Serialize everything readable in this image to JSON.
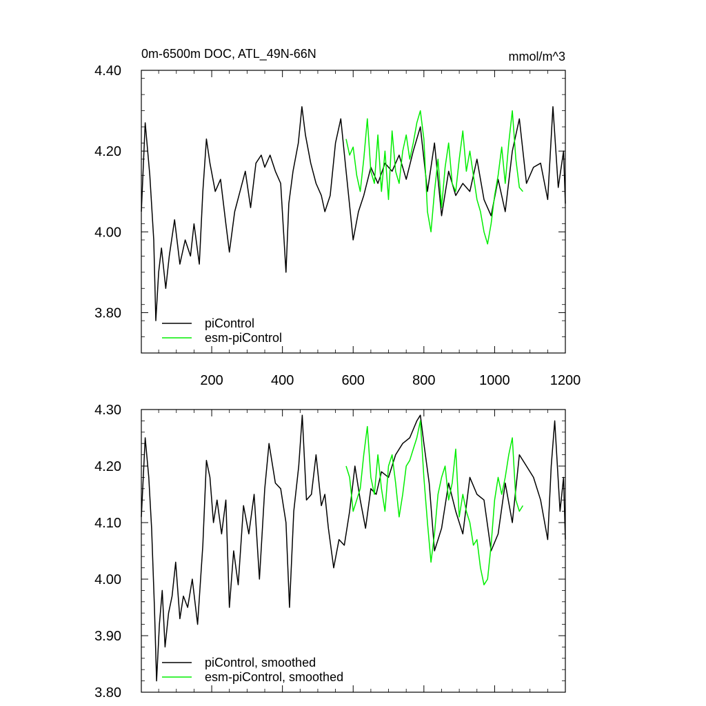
{
  "chart_data": [
    {
      "type": "line",
      "title": "0m-6500m DOC, ATL_49N-66N",
      "units": "mmol/m^3",
      "xlim": [
        1,
        1200
      ],
      "ylim": [
        3.7,
        4.4
      ],
      "x_ticks": [
        200,
        400,
        600,
        800,
        1000,
        1200
      ],
      "x_tick_labels": [
        "200",
        "400",
        "600",
        "800",
        "1000",
        "1200"
      ],
      "y_ticks": [
        3.8,
        4.0,
        4.2,
        4.4
      ],
      "y_tick_labels": [
        "3.80",
        "4.00",
        "4.20",
        "4.40"
      ],
      "legend_position": "bottom-left",
      "series": [
        {
          "name": "piControl",
          "color": "#000000",
          "x": [
            1,
            12,
            25,
            36,
            42,
            50,
            58,
            70,
            80,
            95,
            110,
            125,
            140,
            150,
            165,
            175,
            185,
            195,
            210,
            225,
            240,
            250,
            265,
            280,
            295,
            310,
            325,
            340,
            350,
            365,
            380,
            395,
            410,
            418,
            430,
            445,
            455,
            465,
            480,
            495,
            510,
            520,
            535,
            550,
            565,
            580,
            600,
            615,
            630,
            650,
            670,
            690,
            710,
            730,
            750,
            770,
            790,
            810,
            830,
            850,
            870,
            890,
            910,
            930,
            950,
            970,
            990,
            1010,
            1030,
            1050,
            1070,
            1090,
            1110,
            1130,
            1150,
            1165,
            1180,
            1195,
            1200
          ],
          "y": [
            4.05,
            4.27,
            4.14,
            3.98,
            3.78,
            3.9,
            3.96,
            3.86,
            3.94,
            4.03,
            3.92,
            3.98,
            3.94,
            4.02,
            3.92,
            4.1,
            4.23,
            4.17,
            4.1,
            4.13,
            4.02,
            3.95,
            4.05,
            4.1,
            4.15,
            4.06,
            4.17,
            4.19,
            4.16,
            4.19,
            4.15,
            4.12,
            3.9,
            4.07,
            4.15,
            4.22,
            4.31,
            4.24,
            4.17,
            4.12,
            4.09,
            4.05,
            4.09,
            4.22,
            4.28,
            4.15,
            3.98,
            4.05,
            4.09,
            4.16,
            4.12,
            4.17,
            4.15,
            4.19,
            4.13,
            4.2,
            4.26,
            4.1,
            4.22,
            4.04,
            4.15,
            4.09,
            4.12,
            4.1,
            4.18,
            4.08,
            4.04,
            4.13,
            4.05,
            4.2,
            4.28,
            4.12,
            4.16,
            4.17,
            4.08,
            4.31,
            4.11,
            4.2,
            4.07
          ]
        },
        {
          "name": "esm-piControl",
          "color": "#00ee00",
          "x": [
            580,
            590,
            600,
            610,
            620,
            630,
            640,
            650,
            660,
            670,
            680,
            690,
            700,
            710,
            720,
            730,
            740,
            750,
            760,
            770,
            780,
            790,
            800,
            810,
            820,
            830,
            840,
            850,
            860,
            870,
            880,
            890,
            900,
            910,
            920,
            930,
            940,
            950,
            960,
            970,
            980,
            990,
            1000,
            1010,
            1020,
            1030,
            1040,
            1050,
            1060,
            1070,
            1080
          ],
          "y": [
            4.23,
            4.19,
            4.21,
            4.14,
            4.1,
            4.18,
            4.28,
            4.15,
            4.12,
            4.24,
            4.1,
            4.2,
            4.08,
            4.25,
            4.15,
            4.12,
            4.2,
            4.24,
            4.18,
            4.22,
            4.27,
            4.3,
            4.23,
            4.05,
            4.0,
            4.1,
            4.18,
            4.06,
            4.16,
            4.22,
            4.12,
            4.1,
            4.18,
            4.25,
            4.15,
            4.2,
            4.14,
            4.08,
            4.05,
            4.0,
            3.97,
            4.02,
            4.09,
            4.14,
            4.21,
            4.12,
            4.22,
            4.3,
            4.18,
            4.11,
            4.1
          ]
        }
      ]
    },
    {
      "type": "line",
      "title": "",
      "xlim": [
        1,
        1200
      ],
      "ylim": [
        3.8,
        4.3
      ],
      "x_ticks": [
        200,
        400,
        600,
        800,
        1000,
        1200
      ],
      "x_tick_labels": [],
      "y_ticks": [
        3.8,
        3.9,
        4.0,
        4.1,
        4.2,
        4.3
      ],
      "y_tick_labels": [
        "3.80",
        "3.90",
        "4.00",
        "4.10",
        "4.20",
        "4.30"
      ],
      "legend_position": "bottom-left",
      "series": [
        {
          "name": "piControl, smoothed",
          "color": "#000000",
          "x": [
            1,
            12,
            22,
            30,
            38,
            44,
            52,
            60,
            68,
            78,
            88,
            98,
            110,
            120,
            132,
            145,
            160,
            175,
            185,
            195,
            205,
            215,
            228,
            240,
            250,
            262,
            275,
            290,
            305,
            320,
            335,
            350,
            362,
            380,
            395,
            410,
            420,
            432,
            446,
            456,
            468,
            482,
            495,
            510,
            520,
            530,
            545,
            560,
            575,
            590,
            605,
            620,
            635,
            650,
            665,
            680,
            700,
            720,
            740,
            760,
            780,
            790,
            800,
            815,
            830,
            850,
            870,
            890,
            910,
            930,
            950,
            970,
            990,
            1010,
            1030,
            1050,
            1070,
            1090,
            1110,
            1130,
            1150,
            1160,
            1170,
            1185,
            1195,
            1200
          ],
          "y": [
            4.11,
            4.25,
            4.18,
            4.09,
            3.95,
            3.82,
            3.92,
            3.98,
            3.88,
            3.94,
            3.97,
            4.03,
            3.93,
            3.97,
            3.95,
            4.0,
            3.92,
            4.06,
            4.21,
            4.18,
            4.1,
            4.14,
            4.08,
            4.14,
            3.95,
            4.05,
            3.99,
            4.13,
            4.08,
            4.15,
            4.0,
            4.16,
            4.24,
            4.17,
            4.16,
            4.1,
            3.95,
            4.12,
            4.2,
            4.29,
            4.14,
            4.15,
            4.22,
            4.13,
            4.15,
            4.09,
            4.02,
            4.07,
            4.06,
            4.12,
            4.2,
            4.14,
            4.09,
            4.16,
            4.15,
            4.19,
            4.18,
            4.22,
            4.24,
            4.25,
            4.28,
            4.29,
            4.24,
            4.17,
            4.05,
            4.09,
            4.17,
            4.12,
            4.08,
            4.18,
            4.15,
            4.14,
            4.05,
            4.08,
            4.17,
            4.1,
            4.22,
            4.2,
            4.18,
            4.14,
            4.07,
            4.2,
            4.28,
            4.12,
            4.18,
            4.07
          ]
        },
        {
          "name": "esm-piControl, smoothed",
          "color": "#00ee00",
          "x": [
            580,
            590,
            600,
            610,
            620,
            630,
            640,
            650,
            660,
            670,
            680,
            690,
            700,
            710,
            720,
            730,
            740,
            750,
            760,
            770,
            780,
            790,
            800,
            810,
            820,
            830,
            840,
            850,
            860,
            870,
            880,
            890,
            900,
            910,
            920,
            930,
            940,
            950,
            960,
            970,
            980,
            990,
            1000,
            1010,
            1020,
            1030,
            1040,
            1050,
            1060,
            1070,
            1080
          ],
          "y": [
            4.2,
            4.18,
            4.12,
            4.14,
            4.16,
            4.22,
            4.27,
            4.18,
            4.15,
            4.22,
            4.16,
            4.12,
            4.2,
            4.22,
            4.17,
            4.11,
            4.15,
            4.2,
            4.21,
            4.23,
            4.25,
            4.28,
            4.18,
            4.1,
            4.03,
            4.08,
            4.15,
            4.18,
            4.2,
            4.14,
            4.17,
            4.23,
            4.11,
            4.15,
            4.12,
            4.1,
            4.06,
            4.07,
            4.02,
            3.99,
            4.0,
            4.06,
            4.14,
            4.18,
            4.15,
            4.18,
            4.22,
            4.25,
            4.14,
            4.12,
            4.13
          ]
        }
      ]
    }
  ]
}
